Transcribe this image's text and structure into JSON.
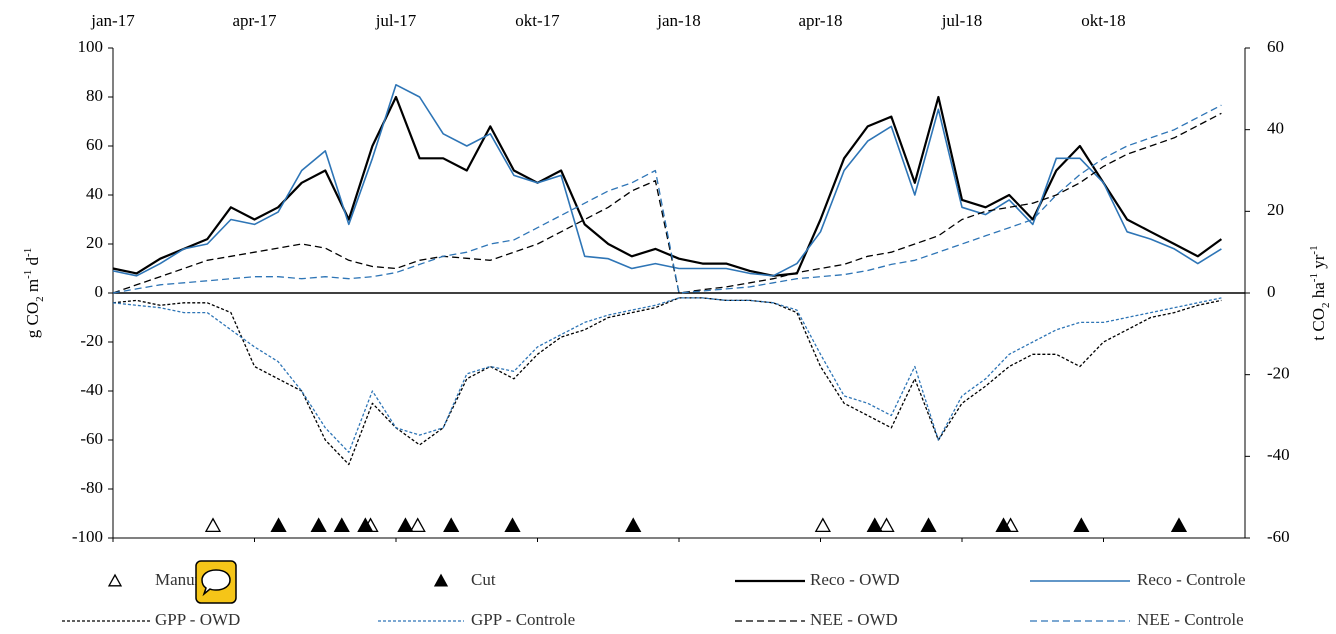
{
  "chart_data": {
    "type": "line",
    "ylabel": [
      {
        "text": "g CO",
        "shift": "none"
      },
      {
        "text": "2",
        "shift": "sub"
      },
      {
        "text": " m",
        "shift": "none"
      },
      {
        "text": "-1",
        "shift": "super"
      },
      {
        "text": " d",
        "shift": "none"
      },
      {
        "text": "-1",
        "shift": "super"
      }
    ],
    "y2label": [
      {
        "text": "t CO",
        "shift": "none"
      },
      {
        "text": "2",
        "shift": "sub"
      },
      {
        "text": " ha",
        "shift": "none"
      },
      {
        "text": "-1",
        "shift": "super"
      },
      {
        "text": " yr",
        "shift": "none"
      },
      {
        "text": "-1",
        "shift": "super"
      }
    ],
    "x": [
      0,
      0.5,
      1,
      1.5,
      2,
      2.5,
      3,
      3.5,
      4,
      4.5,
      5,
      5.5,
      6,
      6.5,
      7,
      7.5,
      8,
      8.5,
      9,
      9.5,
      10,
      10.5,
      11,
      11.5,
      12,
      12.5,
      13,
      13.5,
      14,
      14.5,
      15,
      15.5,
      16,
      16.5,
      17,
      17.5,
      18,
      18.5,
      19,
      19.5,
      20,
      20.5,
      21,
      21.5,
      22,
      22.5,
      23,
      23.5
    ],
    "xlim": [
      0,
      24
    ],
    "xticks": [
      {
        "value": 0,
        "label": "jan-17"
      },
      {
        "value": 3,
        "label": "apr-17"
      },
      {
        "value": 6,
        "label": "jul-17"
      },
      {
        "value": 9,
        "label": "okt-17"
      },
      {
        "value": 12,
        "label": "jan-18"
      },
      {
        "value": 15,
        "label": "apr-18"
      },
      {
        "value": 18,
        "label": "jul-18"
      },
      {
        "value": 21,
        "label": "okt-18"
      }
    ],
    "ylim": [
      -100,
      100
    ],
    "yticks": [
      -100,
      -80,
      -60,
      -40,
      -20,
      0,
      20,
      40,
      60,
      80,
      100
    ],
    "y2lim": [
      -60,
      60
    ],
    "y2ticks": [
      -60,
      -40,
      -20,
      0,
      20,
      40,
      60
    ],
    "series": [
      {
        "name": "Reco - OWD",
        "color": "#000000",
        "style": "solid",
        "width": 2.2,
        "axis": "y",
        "values": [
          10,
          8,
          14,
          18,
          22,
          35,
          30,
          35,
          45,
          50,
          30,
          60,
          80,
          55,
          55,
          50,
          68,
          50,
          45,
          50,
          28,
          20,
          15,
          18,
          14,
          12,
          12,
          9,
          7,
          8,
          30,
          55,
          68,
          72,
          45,
          80,
          38,
          35,
          40,
          30,
          50,
          60,
          45,
          30,
          25,
          20,
          15,
          22
        ]
      },
      {
        "name": "Reco - Controle",
        "color": "#2e75b6",
        "style": "solid",
        "width": 1.6,
        "axis": "y",
        "values": [
          9,
          7,
          12,
          18,
          20,
          30,
          28,
          33,
          50,
          58,
          28,
          55,
          85,
          80,
          65,
          60,
          65,
          48,
          45,
          48,
          15,
          14,
          10,
          12,
          10,
          10,
          10,
          8,
          7,
          12,
          25,
          50,
          62,
          68,
          40,
          75,
          35,
          32,
          38,
          28,
          55,
          55,
          45,
          25,
          22,
          18,
          12,
          18
        ]
      },
      {
        "name": "GPP - OWD",
        "color": "#000000",
        "style": "dotted",
        "width": 1.3,
        "axis": "y",
        "values": [
          -4,
          -3,
          -5,
          -4,
          -4,
          -8,
          -30,
          -35,
          -40,
          -60,
          -70,
          -45,
          -55,
          -62,
          -55,
          -35,
          -30,
          -35,
          -25,
          -18,
          -15,
          -10,
          -8,
          -6,
          -2,
          -2,
          -3,
          -3,
          -4,
          -8,
          -30,
          -45,
          -50,
          -55,
          -35,
          -60,
          -45,
          -38,
          -30,
          -25,
          -25,
          -30,
          -20,
          -15,
          -10,
          -8,
          -5,
          -3
        ]
      },
      {
        "name": "GPP - Controle",
        "color": "#2e75b6",
        "style": "dotted",
        "width": 1.3,
        "axis": "y",
        "values": [
          -4,
          -5,
          -6,
          -8,
          -8,
          -15,
          -22,
          -28,
          -40,
          -55,
          -65,
          -40,
          -55,
          -58,
          -55,
          -33,
          -30,
          -32,
          -22,
          -17,
          -12,
          -9,
          -7,
          -5,
          -2,
          -2,
          -3,
          -3,
          -4,
          -7,
          -25,
          -42,
          -45,
          -50,
          -30,
          -60,
          -42,
          -35,
          -25,
          -20,
          -15,
          -12,
          -12,
          -10,
          -8,
          -6,
          -4,
          -2
        ]
      },
      {
        "name": "NEE - OWD",
        "color": "#000000",
        "style": "dashed",
        "width": 1.3,
        "axis": "y2",
        "values": [
          0,
          2,
          4,
          6,
          8,
          9,
          10,
          11,
          12,
          11,
          8,
          6.5,
          6,
          8,
          9,
          8.5,
          8,
          10,
          12,
          15,
          18,
          21,
          25,
          27.5,
          0,
          0.8,
          1.5,
          2.5,
          3.5,
          5,
          6,
          7,
          9,
          10,
          12,
          14,
          18,
          20,
          21,
          22,
          24,
          27,
          31,
          34,
          36,
          38,
          41,
          44
        ]
      },
      {
        "name": "NEE - Controle",
        "color": "#2e75b6",
        "style": "dashed",
        "width": 1.3,
        "axis": "y2",
        "values": [
          0,
          1,
          2,
          2.5,
          3,
          3.5,
          4,
          4,
          3.5,
          4,
          3.5,
          4,
          5,
          7,
          9,
          10,
          12,
          13,
          16,
          19,
          22,
          25,
          27,
          30,
          0,
          0.5,
          1,
          1.5,
          2.5,
          3.5,
          4,
          4.5,
          5.5,
          7,
          8,
          10,
          12,
          14,
          16,
          18,
          24,
          29,
          33,
          36,
          38,
          40,
          43,
          46
        ]
      }
    ],
    "events": [
      {
        "name": "Manure",
        "fill": "none",
        "y": -95,
        "x": [
          2.12,
          5.46,
          6.46,
          15.05,
          16.4,
          19.03
        ]
      },
      {
        "name": "Cut",
        "fill": "#000000",
        "y": -95,
        "x": [
          3.51,
          4.36,
          4.85,
          5.35,
          6.2,
          7.17,
          8.47,
          11.03,
          16.15,
          17.29,
          18.88,
          20.53,
          22.6
        ]
      }
    ]
  }
}
